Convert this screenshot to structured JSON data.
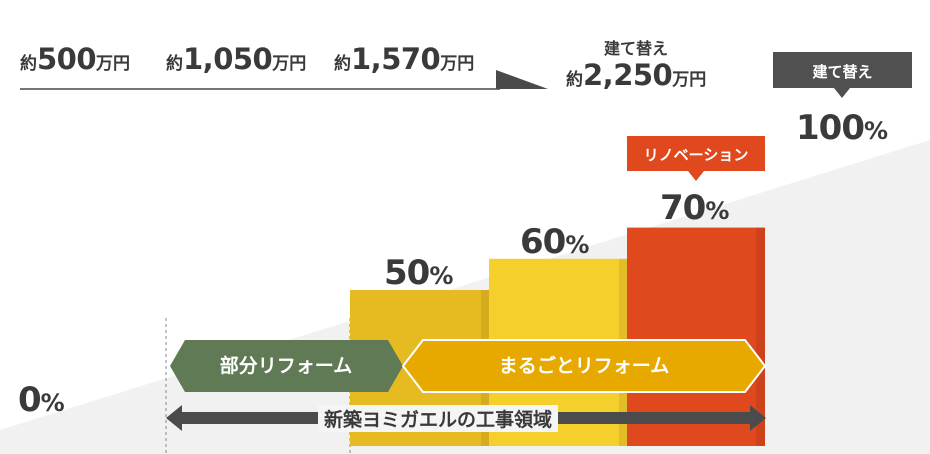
{
  "costs": [
    {
      "prefix": "約",
      "amount": "500",
      "unit": "万円"
    },
    {
      "prefix": "約",
      "amount": "1,050",
      "unit": "万円"
    },
    {
      "prefix": "約",
      "amount": "1,570",
      "unit": "万円"
    },
    {
      "prefix": "約",
      "amount": "2,250",
      "unit": "万円",
      "caption": "建て替え"
    }
  ],
  "tags": {
    "renovation": "リノベーション",
    "rebuild": "建て替え"
  },
  "arrows": {
    "partial": "部分リフォーム",
    "full": "まるごとリフォーム",
    "scope": "新築ヨミガエルの工事領域"
  },
  "colors": {
    "partial": "#5f7a55",
    "full": "#e7a900",
    "bar50": "#e6bb21",
    "bar60": "#f5cf2c",
    "bar70": "#e0481e",
    "tag_rebuild": "#505050",
    "scope": "#4b4b4b"
  },
  "chart_data": {
    "type": "bar",
    "categories": [
      "0%",
      "50%",
      "60%",
      "70%",
      "100%"
    ],
    "values": [
      0,
      50,
      60,
      70,
      100
    ],
    "value_labels": [
      {
        "num": "0",
        "sym": "%"
      },
      {
        "num": "50",
        "sym": "%"
      },
      {
        "num": "60",
        "sym": "%"
      },
      {
        "num": "70",
        "sym": "%"
      },
      {
        "num": "100",
        "sym": "%"
      }
    ],
    "ylim": [
      0,
      100
    ],
    "grid": false
  }
}
